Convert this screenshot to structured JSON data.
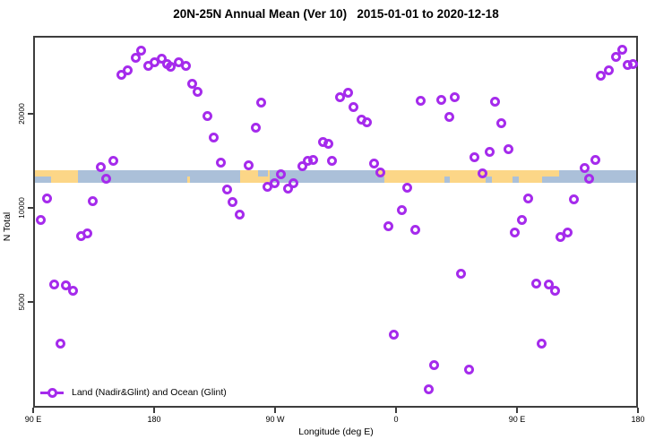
{
  "chart_data": {
    "type": "scatter",
    "title": "20N-25N Annual Mean (Ver 10)   2015-01-01 to 2020-12-18",
    "xlabel": "Longitude (deg E)",
    "ylabel": "N Total",
    "x_range_deg": [
      90,
      540
    ],
    "y_range": [
      2300,
      35600
    ],
    "y_scale": "log",
    "grid": false,
    "x_ticks": [
      {
        "deg": 90,
        "label": "90 E"
      },
      {
        "deg": 180,
        "label": "180"
      },
      {
        "deg": 270,
        "label": "90 W"
      },
      {
        "deg": 360,
        "label": "0"
      },
      {
        "deg": 450,
        "label": "90 E"
      },
      {
        "deg": 540,
        "label": "180"
      }
    ],
    "y_ticks": [
      {
        "value": 20000,
        "label": "20000"
      },
      {
        "value": 10000,
        "label": "10000"
      },
      {
        "value": 5000,
        "label": "5000"
      }
    ],
    "legend": {
      "label": "Land (Nadir&Glint) and Ocean (Glint)",
      "marker": "open-circle-on-line",
      "position": "bottom-left"
    },
    "points": [
      [
        154.0,
        27000
      ],
      [
        159.3,
        27900
      ],
      [
        164.7,
        30600
      ],
      [
        168.7,
        32300
      ],
      [
        174.0,
        28900
      ],
      [
        179.3,
        29600
      ],
      [
        184.0,
        30400
      ],
      [
        188.0,
        29300
      ],
      [
        191.3,
        28700
      ],
      [
        196.7,
        29600
      ],
      [
        202.0,
        28900
      ],
      [
        207.3,
        25300
      ],
      [
        211.3,
        23900
      ],
      [
        218.0,
        20000
      ],
      [
        222.7,
        17100
      ],
      [
        139.3,
        13700
      ],
      [
        143.3,
        12600
      ],
      [
        148.0,
        14400
      ],
      [
        99.3,
        10900
      ],
      [
        133.3,
        10700
      ],
      [
        94.0,
        9290
      ],
      [
        124.0,
        8260
      ],
      [
        128.7,
        8420
      ],
      [
        228.0,
        14200
      ],
      [
        232.7,
        11600
      ],
      [
        237.3,
        10600
      ],
      [
        242.0,
        9660
      ],
      [
        104.0,
        5760
      ],
      [
        112.7,
        5720
      ],
      [
        118.0,
        5530
      ],
      [
        108.7,
        3740
      ],
      [
        258.0,
        22100
      ],
      [
        254.0,
        18300
      ],
      [
        317.3,
        23000
      ],
      [
        322.7,
        23700
      ],
      [
        327.3,
        21400
      ],
      [
        332.7,
        19500
      ],
      [
        337.3,
        19100
      ],
      [
        304.0,
        16500
      ],
      [
        308.0,
        16300
      ],
      [
        376.7,
        22400
      ],
      [
        392.0,
        22500
      ],
      [
        248.7,
        13900
      ],
      [
        272.7,
        13000
      ],
      [
        268.0,
        12200
      ],
      [
        263.3,
        11900
      ],
      [
        282.0,
        12200
      ],
      [
        278.0,
        11700
      ],
      [
        288.7,
        13800
      ],
      [
        293.3,
        14400
      ],
      [
        297.3,
        14500
      ],
      [
        311.3,
        14400
      ],
      [
        342.0,
        14100
      ],
      [
        347.3,
        13200
      ],
      [
        367.3,
        11800
      ],
      [
        362.7,
        9980
      ],
      [
        352.7,
        8870
      ],
      [
        372.7,
        8650
      ],
      [
        357.3,
        3990
      ],
      [
        386.7,
        3190
      ],
      [
        382.7,
        2660
      ],
      [
        402.0,
        23000
      ],
      [
        398.0,
        19900
      ],
      [
        432.0,
        22200
      ],
      [
        436.7,
        18900
      ],
      [
        442.0,
        15600
      ],
      [
        428.0,
        15300
      ],
      [
        416.7,
        14700
      ],
      [
        526.7,
        32500
      ],
      [
        522.0,
        30800
      ],
      [
        530.7,
        29100
      ],
      [
        535.3,
        29300
      ],
      [
        516.7,
        27900
      ],
      [
        511.3,
        26900
      ],
      [
        422.7,
        13100
      ],
      [
        498.7,
        13600
      ],
      [
        502.0,
        12600
      ],
      [
        506.7,
        14500
      ],
      [
        457.3,
        10900
      ],
      [
        491.3,
        10800
      ],
      [
        452.0,
        9290
      ],
      [
        447.3,
        8470
      ],
      [
        481.3,
        8200
      ],
      [
        486.0,
        8470
      ],
      [
        406.7,
        6270
      ],
      [
        462.7,
        5830
      ],
      [
        472.0,
        5790
      ],
      [
        476.7,
        5530
      ],
      [
        467.3,
        3740
      ],
      [
        412.7,
        3090
      ]
    ],
    "map_band": {
      "n_top": 13400,
      "n_bottom": 12250,
      "land_segments_deg": [
        [
          90,
          122
        ],
        [
          242.7,
          264.7
        ],
        [
          344,
          480
        ]
      ],
      "ocean_notches_deg": [
        {
          "range": [
            90,
            102
          ],
          "part": "bottom"
        },
        {
          "range": [
            256,
            263
          ],
          "part": "top"
        },
        {
          "range": [
            342,
            350
          ],
          "part": "bottom"
        },
        {
          "range": [
            394.7,
            398.7
          ],
          "part": "bottom"
        },
        {
          "range": [
            425,
            430
          ],
          "part": "bottom"
        },
        {
          "range": [
            445,
            450
          ],
          "part": "bottom"
        },
        {
          "range": [
            467,
            480
          ],
          "part": "bottom"
        }
      ],
      "land_islands_deg": [
        {
          "range": [
            203,
            205
          ],
          "part": "bottom"
        }
      ]
    },
    "colors": {
      "marker": "#a52bec",
      "land": "#fcd687",
      "ocean": "#abc0d9",
      "axis": "#3d3d3d",
      "text": "#000000"
    }
  }
}
